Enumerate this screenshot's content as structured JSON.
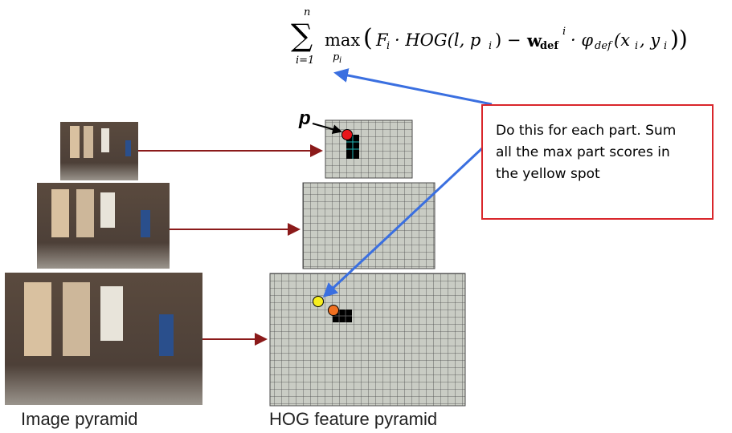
{
  "formula": {
    "sum": "∑",
    "sum_upper": "n",
    "sum_lower": "i=1",
    "max": "max",
    "max_sub": "p",
    "max_sub_index": "i",
    "body": [
      "(",
      "F",
      "i",
      "· HOG(l, p",
      "i",
      ") −",
      "w",
      "def",
      "i",
      "· φ",
      "def",
      "(x",
      "i",
      ", y",
      "i",
      "))"
    ]
  },
  "part_label": "p",
  "callout": {
    "lines": [
      "Do this for each part. Sum",
      "all the max part scores in",
      "the yellow spot"
    ]
  },
  "captions": {
    "image_pyramid": "Image pyramid",
    "hog_pyramid": "HOG feature pyramid"
  }
}
